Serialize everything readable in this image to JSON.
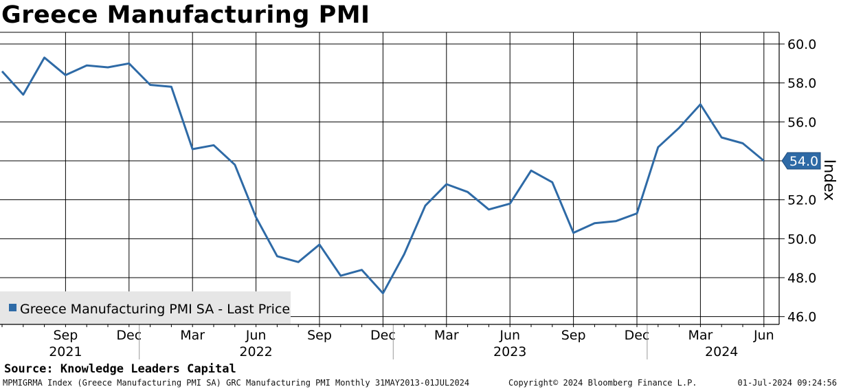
{
  "title": "Greece Manufacturing PMI",
  "source": "Source: Knowledge Leaders Capital",
  "footer": {
    "left": "MPMIGRMA Index (Greece Manufacturing PMI SA) GRC Manufacturing PMI  Monthly 31MAY2013-01JUL2024",
    "copyright": "Copyright© 2024 Bloomberg Finance L.P.",
    "timestamp": "01-Jul-2024 09:24:56"
  },
  "colors": {
    "line": "#2e6aa6",
    "grid": "#000000",
    "legend_bg": "#e6e6e6"
  },
  "chart_data": {
    "type": "line",
    "ylabel": "Index",
    "ylim": [
      45.6,
      60.6
    ],
    "yticks": [
      "60.0",
      "58.0",
      "56.0",
      "54.0",
      "52.0",
      "50.0",
      "48.0",
      "46.0"
    ],
    "legend_placement": "bottom-left",
    "last_price_label": "54.0",
    "x_range": [
      "2021-06",
      "2024-06"
    ],
    "x_month_labels": [
      {
        "date": "2021-09",
        "label": "Sep"
      },
      {
        "date": "2021-12",
        "label": "Dec"
      },
      {
        "date": "2022-03",
        "label": "Mar"
      },
      {
        "date": "2022-06",
        "label": "Jun"
      },
      {
        "date": "2022-09",
        "label": "Sep"
      },
      {
        "date": "2022-12",
        "label": "Dec"
      },
      {
        "date": "2023-03",
        "label": "Mar"
      },
      {
        "date": "2023-06",
        "label": "Jun"
      },
      {
        "date": "2023-09",
        "label": "Sep"
      },
      {
        "date": "2023-12",
        "label": "Dec"
      },
      {
        "date": "2024-03",
        "label": "Mar"
      },
      {
        "date": "2024-06",
        "label": "Jun"
      }
    ],
    "x_year_labels": [
      {
        "date": "2021-09",
        "label": "2021"
      },
      {
        "date": "2022-06",
        "label": "2022"
      },
      {
        "date": "2023-06",
        "label": "2023"
      },
      {
        "date": "2024-04",
        "label": "2024"
      }
    ],
    "x_year_separators": [
      "2022-01",
      "2023-01",
      "2024-01"
    ],
    "series": [
      {
        "name": "Greece Manufacturing PMI SA - Last Price",
        "x": [
          "2021-06",
          "2021-07",
          "2021-08",
          "2021-09",
          "2021-10",
          "2021-11",
          "2021-12",
          "2022-01",
          "2022-02",
          "2022-03",
          "2022-04",
          "2022-05",
          "2022-06",
          "2022-07",
          "2022-08",
          "2022-09",
          "2022-10",
          "2022-11",
          "2022-12",
          "2023-01",
          "2023-02",
          "2023-03",
          "2023-04",
          "2023-05",
          "2023-06",
          "2023-07",
          "2023-08",
          "2023-09",
          "2023-10",
          "2023-11",
          "2023-12",
          "2024-01",
          "2024-02",
          "2024-03",
          "2024-04",
          "2024-05",
          "2024-06"
        ],
        "values": [
          58.6,
          57.4,
          59.3,
          58.4,
          58.9,
          58.8,
          59.0,
          57.9,
          57.8,
          54.6,
          54.8,
          53.8,
          51.1,
          49.1,
          48.8,
          49.7,
          48.1,
          48.4,
          47.2,
          49.2,
          51.7,
          52.8,
          52.4,
          51.5,
          51.8,
          53.5,
          52.9,
          50.3,
          50.8,
          50.9,
          51.3,
          54.7,
          55.7,
          56.9,
          55.2,
          54.9,
          54.0
        ]
      }
    ]
  }
}
